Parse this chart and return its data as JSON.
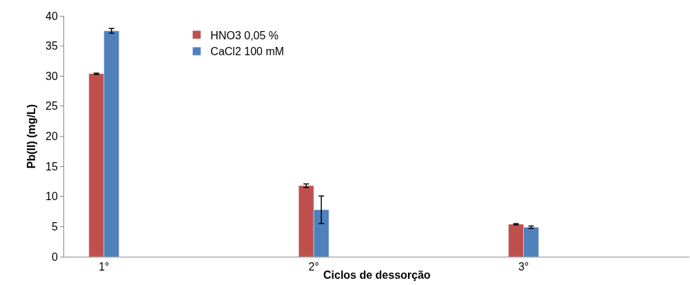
{
  "chart_data": {
    "type": "bar",
    "ylabel": "Pb(II) (mg/L)",
    "xlabel": "Ciclos de dessorção",
    "categories": [
      "1°",
      "2°",
      "3°"
    ],
    "series": [
      {
        "name": "HNO3 0,05 %",
        "color": "#c0504d",
        "values": [
          30.4,
          11.8,
          5.4
        ],
        "errors": [
          0.1,
          0.3,
          0.1
        ]
      },
      {
        "name": "CaCl2 100 mM",
        "color": "#4f81bd",
        "values": [
          37.5,
          7.8,
          4.9
        ],
        "errors": [
          0.4,
          2.3,
          0.2
        ]
      }
    ],
    "ylim": [
      0,
      40
    ],
    "yticks": [
      0,
      5,
      10,
      15,
      20,
      25,
      30,
      35,
      40
    ],
    "legend": "top left"
  }
}
